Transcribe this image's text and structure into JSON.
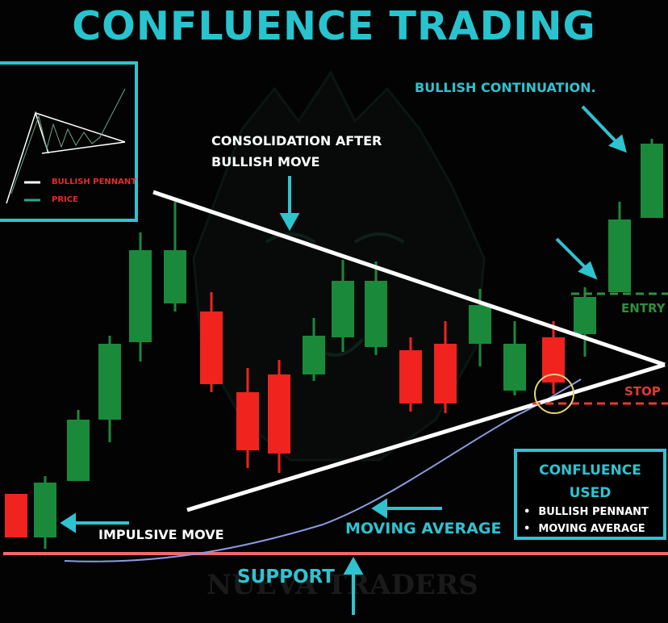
{
  "title": "CONFLUENCE TRADING",
  "watermark": "NUEVA TRADERS",
  "legend": {
    "bullish_pennant": "BULLISH PENNANT",
    "price": "PRICE"
  },
  "labels": {
    "consolidation_line1": "CONSOLIDATION AFTER",
    "consolidation_line2": "BULLISH MOVE",
    "bullish_continuation": "BULLISH CONTINUATION.",
    "entry": "ENTRY",
    "stop": "STOP",
    "impulsive_move": "IMPULSIVE MOVE",
    "moving_average": "MOVING AVERAGE",
    "support": "SUPPORT"
  },
  "confluence": {
    "title_line1": "CONFLUENCE",
    "title_line2": "USED",
    "items": [
      "BULLISH PENNANT",
      "MOVING AVERAGE"
    ]
  },
  "colors": {
    "accent": "#2fc3d0",
    "bull": "#1a8a3a",
    "bear": "#f0231e",
    "support": "#f06a6a",
    "ma": "#8b9be0",
    "stop": "#e53a30",
    "entry": "#2f8f3e",
    "circle": "#e8d27a"
  },
  "candles": [
    {
      "dir": "bear"
    },
    {
      "dir": "bull"
    },
    {
      "dir": "bull"
    },
    {
      "dir": "bull"
    },
    {
      "dir": "bull"
    },
    {
      "dir": "bull"
    },
    {
      "dir": "bear"
    },
    {
      "dir": "bear"
    },
    {
      "dir": "bear"
    },
    {
      "dir": "bull"
    },
    {
      "dir": "bull"
    },
    {
      "dir": "bull"
    },
    {
      "dir": "bear"
    },
    {
      "dir": "bear"
    },
    {
      "dir": "bull"
    },
    {
      "dir": "bull"
    },
    {
      "dir": "bear"
    },
    {
      "dir": "bull"
    },
    {
      "dir": "bull"
    },
    {
      "dir": "bull"
    },
    {
      "dir": "bull"
    }
  ]
}
